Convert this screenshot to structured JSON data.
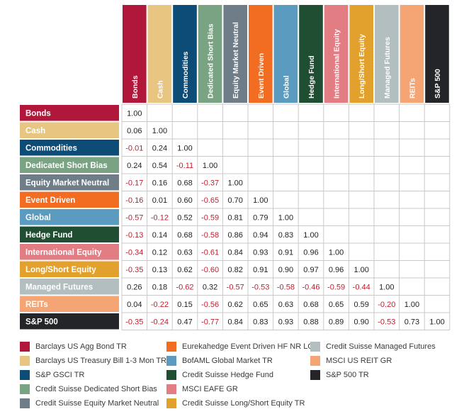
{
  "chart_data": {
    "type": "table",
    "title": "",
    "categories": [
      "Bonds",
      "Cash",
      "Commodities",
      "Dedicated Short Bias",
      "Equity Market Neutral",
      "Event Driven",
      "Global",
      "Hedge Fund",
      "International Equity",
      "Long/Short Equity",
      "Managed Futures",
      "REITs",
      "S&P 500"
    ],
    "colors": [
      "#b0173a",
      "#e8c581",
      "#0d4c77",
      "#7aa384",
      "#6f7d89",
      "#f26c22",
      "#5a9bbf",
      "#1f4e32",
      "#e27d84",
      "#e1a12c",
      "#b3bec0",
      "#f5a473",
      "#232528"
    ],
    "label_colors": [
      "#ffffff",
      "#ffffff",
      "#ffffff",
      "#ffffff",
      "#ffffff",
      "#ffffff",
      "#ffffff",
      "#ffffff",
      "#ffffff",
      "#ffffff",
      "#ffffff",
      "#ffffff",
      "#ffffff"
    ],
    "negative_color": "#c0202e",
    "positive_color": "#222222",
    "rows": [
      [
        "1.00"
      ],
      [
        "0.06",
        "1.00"
      ],
      [
        "-0.01",
        "0.24",
        "1.00"
      ],
      [
        "0.24",
        "0.54",
        "-0.11",
        "1.00"
      ],
      [
        "-0.17",
        "0.16",
        "0.68",
        "-0.37",
        "1.00"
      ],
      [
        "-0.16",
        "0.01",
        "0.60",
        "-0.65",
        "0.70",
        "1.00"
      ],
      [
        "-0.57",
        "-0.12",
        "0.52",
        "-0.59",
        "0.81",
        "0.79",
        "1.00"
      ],
      [
        "-0.13",
        "0.14",
        "0.68",
        "-0.58",
        "0.86",
        "0.94",
        "0.83",
        "1.00"
      ],
      [
        "-0.34",
        "0.12",
        "0.63",
        "-0.61",
        "0.84",
        "0.93",
        "0.91",
        "0.96",
        "1.00"
      ],
      [
        "-0.35",
        "0.13",
        "0.62",
        "-0.60",
        "0.82",
        "0.91",
        "0.90",
        "0.97",
        "0.96",
        "1.00"
      ],
      [
        "0.26",
        "0.18",
        "-0.62",
        "0.32",
        "-0.57",
        "-0.53",
        "-0.58",
        "-0.46",
        "-0.59",
        "-0.44",
        "1.00"
      ],
      [
        "0.04",
        "-0.22",
        "0.15",
        "-0.56",
        "0.62",
        "0.65",
        "0.63",
        "0.68",
        "0.65",
        "0.59",
        "-0.20",
        "1.00"
      ],
      [
        "-0.35",
        "-0.24",
        "0.47",
        "-0.77",
        "0.84",
        "0.83",
        "0.93",
        "0.88",
        "0.89",
        "0.90",
        "-0.53",
        "0.73",
        "1.00"
      ]
    ],
    "legend": [
      {
        "label": "Barclays US Agg Bond TR",
        "color": "#b0173a"
      },
      {
        "label": "Barclays US Treasury Bill 1-3 Mon TR",
        "color": "#e8c581"
      },
      {
        "label": "S&P GSCI TR",
        "color": "#0d4c77"
      },
      {
        "label": "Credit Suisse Dedicated Short Bias",
        "color": "#7aa384"
      },
      {
        "label": "Credit Suisse Equity Market Neutral",
        "color": "#6f7d89"
      },
      {
        "label": "Eurekahedge Event Driven HF NR LCL",
        "color": "#f26c22"
      },
      {
        "label": "BofAML Global Market TR",
        "color": "#5a9bbf"
      },
      {
        "label": "Credit Suisse Hedge Fund",
        "color": "#1f4e32"
      },
      {
        "label": "MSCI EAFE GR",
        "color": "#e27d84"
      },
      {
        "label": "Credit Suisse Long/Short Equity TR",
        "color": "#e1a12c"
      },
      {
        "label": "Credit Suisse Managed Futures",
        "color": "#b3bec0"
      },
      {
        "label": "MSCI US REIT GR",
        "color": "#f5a473"
      },
      {
        "label": "S&P 500 TR",
        "color": "#232528"
      }
    ]
  }
}
